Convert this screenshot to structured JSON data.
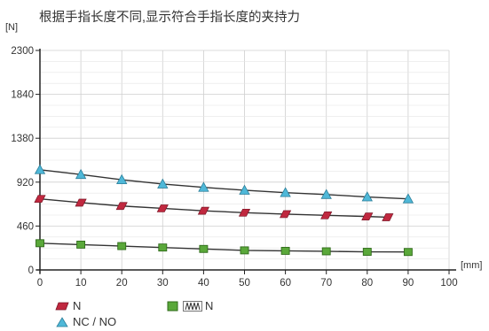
{
  "chart_data": {
    "type": "line",
    "title": "根据手指长度不同,显示符合手指长度的夹持力",
    "ylabel": "[N]",
    "xlabel": "[mm]",
    "xlim": [
      0,
      100
    ],
    "ylim": [
      0,
      2300
    ],
    "xticks": [
      0,
      10,
      20,
      30,
      40,
      50,
      60,
      70,
      80,
      90,
      100
    ],
    "yticks": [
      0,
      460,
      920,
      1380,
      1840,
      2300
    ],
    "grid": true,
    "series": [
      {
        "name": "N",
        "marker": "parallelogram",
        "color": "#c0283f",
        "x": [
          0,
          10,
          20,
          30,
          40,
          50,
          60,
          70,
          80,
          85
        ],
        "y": [
          745,
          705,
          670,
          645,
          620,
          600,
          585,
          572,
          560,
          552
        ]
      },
      {
        "name": "NC / NO",
        "marker": "triangle",
        "color": "#4fb8d8",
        "x": [
          0,
          10,
          20,
          30,
          40,
          50,
          60,
          70,
          80,
          90
        ],
        "y": [
          1050,
          1000,
          945,
          900,
          865,
          835,
          810,
          790,
          765,
          745
        ]
      },
      {
        "name": "N",
        "marker": "square",
        "color": "#5aa83a",
        "x": [
          0,
          10,
          20,
          30,
          40,
          50,
          60,
          70,
          80,
          90
        ],
        "y": [
          280,
          265,
          250,
          235,
          220,
          205,
          200,
          195,
          190,
          188
        ]
      }
    ],
    "legend": [
      {
        "label": "N",
        "marker": "parallelogram",
        "color": "#c0283f"
      },
      {
        "label": "NC / NO",
        "marker": "triangle",
        "color": "#4fb8d8"
      },
      {
        "label": "N",
        "marker": "square-spring",
        "color": "#5aa83a"
      }
    ]
  }
}
